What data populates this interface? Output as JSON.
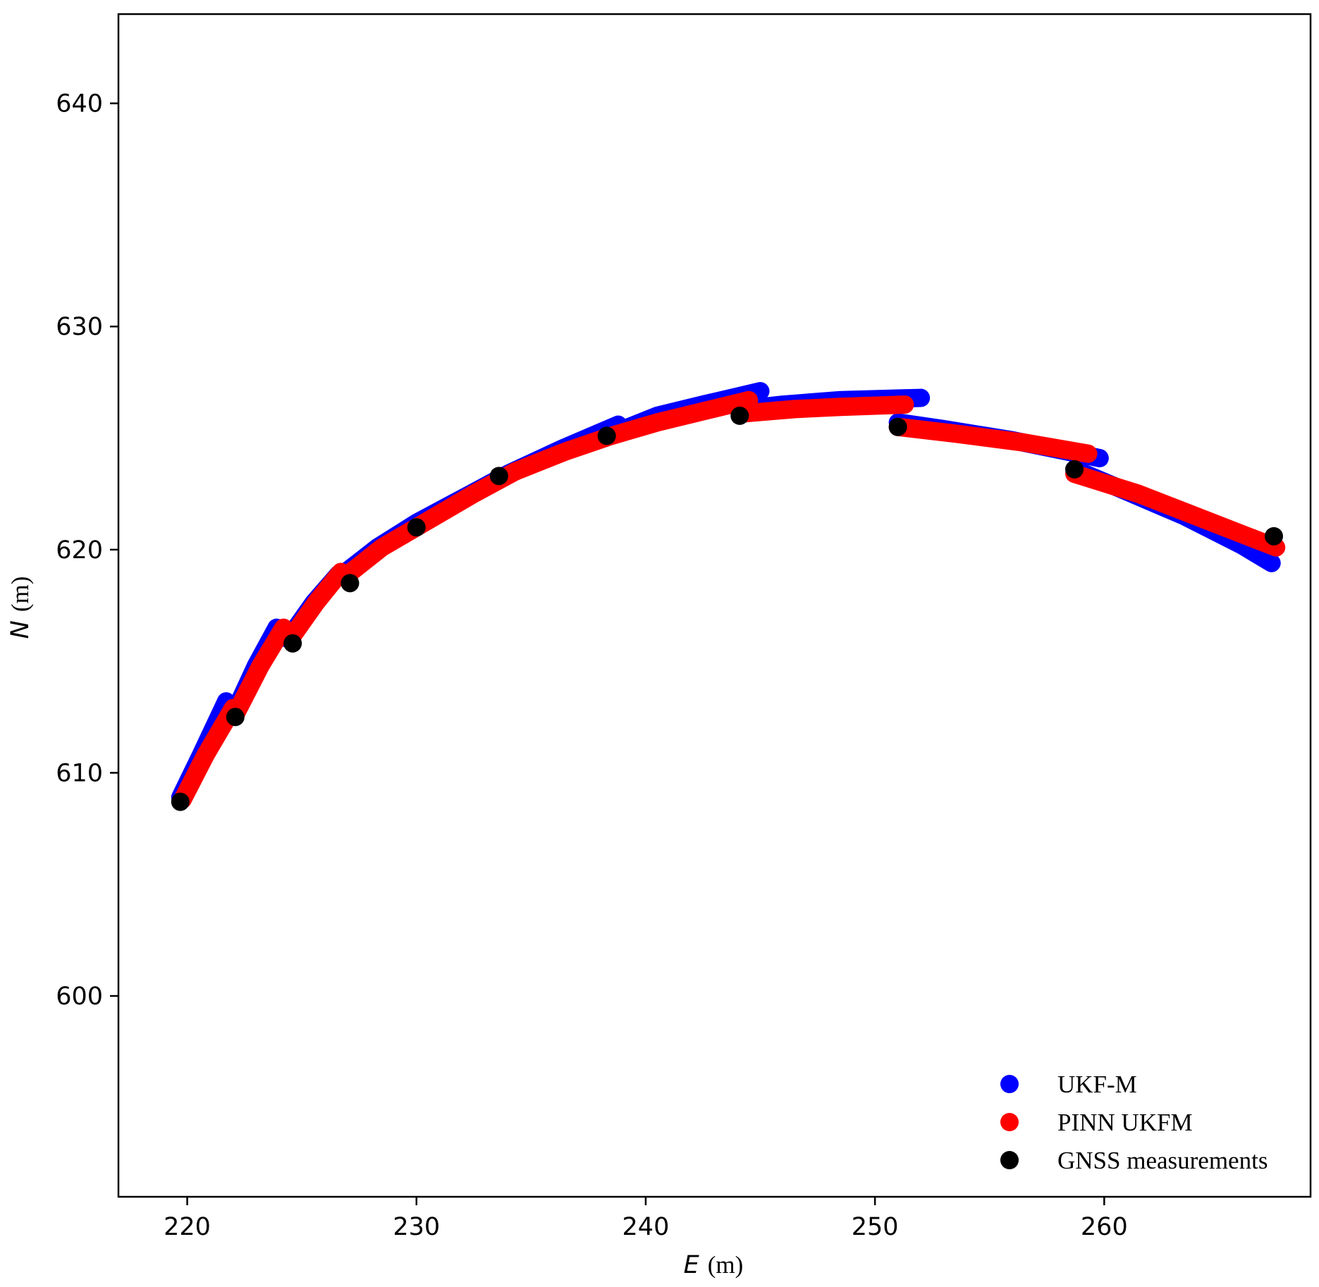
{
  "chart_data": {
    "type": "scatter",
    "xlabel": {
      "var": "E",
      "unit": "(m)"
    },
    "ylabel": {
      "var": "N",
      "unit": "(m)"
    },
    "xlim": [
      217,
      269
    ],
    "ylim": [
      591,
      644
    ],
    "xticks": [
      220,
      230,
      240,
      250,
      260
    ],
    "yticks": [
      600,
      610,
      620,
      630,
      640
    ],
    "grid": false,
    "legend_position": "bottom-right",
    "series": [
      {
        "name": "UKF-M",
        "color": "#0000ff",
        "segments": [
          [
            [
              219.7,
              608.9
            ],
            [
              220.6,
              610.8
            ],
            [
              221.7,
              613.2
            ]
          ],
          [
            [
              222.1,
              612.8
            ],
            [
              223.0,
              614.8
            ],
            [
              223.9,
              616.5
            ]
          ],
          [
            [
              224.4,
              616.0
            ],
            [
              225.5,
              617.6
            ],
            [
              226.6,
              618.9
            ]
          ],
          [
            [
              226.8,
              618.9
            ],
            [
              228.3,
              620.1
            ],
            [
              230.0,
              621.2
            ],
            [
              232.0,
              622.3
            ],
            [
              234.0,
              623.4
            ],
            [
              236.3,
              624.5
            ],
            [
              238.8,
              625.6
            ]
          ],
          [
            [
              238.8,
              625.3
            ],
            [
              240.5,
              626.0
            ],
            [
              242.5,
              626.5
            ],
            [
              245.0,
              627.1
            ]
          ],
          [
            [
              244.2,
              626.3
            ],
            [
              246.0,
              626.5
            ],
            [
              248.5,
              626.7
            ],
            [
              252.0,
              626.8
            ]
          ],
          [
            [
              251.0,
              625.7
            ],
            [
              253.0,
              625.4
            ],
            [
              256.0,
              624.9
            ],
            [
              259.8,
              624.1
            ]
          ],
          [
            [
              258.7,
              623.6
            ],
            [
              261.0,
              622.6
            ],
            [
              263.5,
              621.5
            ],
            [
              266.0,
              620.2
            ],
            [
              267.3,
              619.4
            ]
          ]
        ]
      },
      {
        "name": "PINN UKFM",
        "color": "#ff0000",
        "segments": [
          [
            [
              219.8,
              608.8
            ],
            [
              220.8,
              610.8
            ],
            [
              222.0,
              612.9
            ]
          ],
          [
            [
              222.1,
              612.6
            ],
            [
              223.2,
              614.8
            ],
            [
              224.2,
              616.5
            ]
          ],
          [
            [
              224.5,
              616.0
            ],
            [
              225.6,
              617.6
            ],
            [
              226.7,
              619.0
            ]
          ],
          [
            [
              226.9,
              618.8
            ],
            [
              228.5,
              620.1
            ],
            [
              230.5,
              621.3
            ],
            [
              232.5,
              622.5
            ],
            [
              234.3,
              623.5
            ],
            [
              236.5,
              624.4
            ],
            [
              238.5,
              625.1
            ]
          ],
          [
            [
              238.5,
              625.1
            ],
            [
              240.5,
              625.7
            ],
            [
              242.5,
              626.2
            ],
            [
              244.5,
              626.7
            ]
          ],
          [
            [
              244.2,
              626.1
            ],
            [
              246.5,
              626.3
            ],
            [
              248.5,
              626.4
            ],
            [
              251.3,
              626.5
            ]
          ],
          [
            [
              251.0,
              625.5
            ],
            [
              253.5,
              625.2
            ],
            [
              256.5,
              624.8
            ],
            [
              259.3,
              624.3
            ]
          ],
          [
            [
              258.7,
              623.4
            ],
            [
              261.5,
              622.5
            ],
            [
              264.0,
              621.5
            ],
            [
              267.5,
              620.1
            ]
          ]
        ]
      },
      {
        "name": "GNSS measurements",
        "color": "#000000",
        "x": [
          219.7,
          222.1,
          224.6,
          227.1,
          230.0,
          233.6,
          238.3,
          244.1,
          251.0,
          258.7,
          267.4
        ],
        "y": [
          608.7,
          612.5,
          615.8,
          618.5,
          621.0,
          623.3,
          625.1,
          626.0,
          625.5,
          623.6,
          620.6
        ]
      }
    ]
  }
}
